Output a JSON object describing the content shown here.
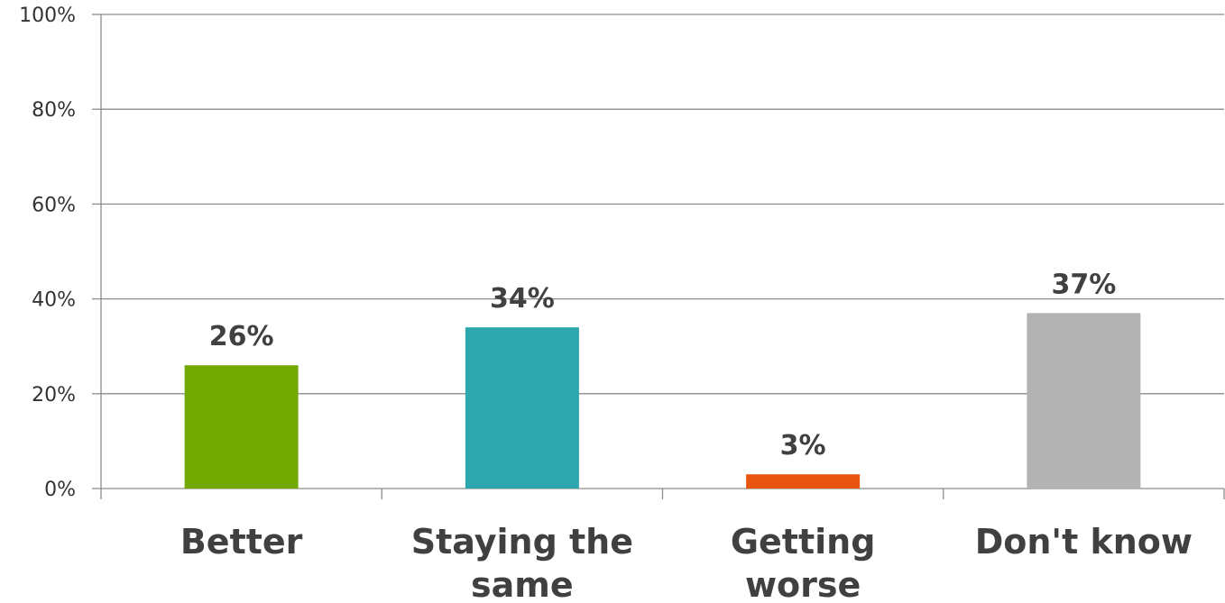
{
  "chart_data": {
    "type": "bar",
    "categories": [
      "Better",
      "Staying the same",
      "Getting worse",
      "Don't know"
    ],
    "category_label_lines": [
      [
        "Better"
      ],
      [
        "Staying the",
        "same"
      ],
      [
        "Getting",
        "worse"
      ],
      [
        "Don't know"
      ]
    ],
    "values": [
      26,
      34,
      3,
      37
    ],
    "value_labels": [
      "26%",
      "34%",
      "3%",
      "37%"
    ],
    "colors": [
      "#72a800",
      "#2ba7ad",
      "#e85510",
      "#b3b3b3"
    ],
    "ylim": [
      0,
      100
    ],
    "y_ticks": [
      0,
      20,
      40,
      60,
      80,
      100
    ],
    "y_tick_labels": [
      "0%",
      "20%",
      "40%",
      "60%",
      "80%",
      "100%"
    ],
    "grid": true,
    "legend": "none"
  }
}
